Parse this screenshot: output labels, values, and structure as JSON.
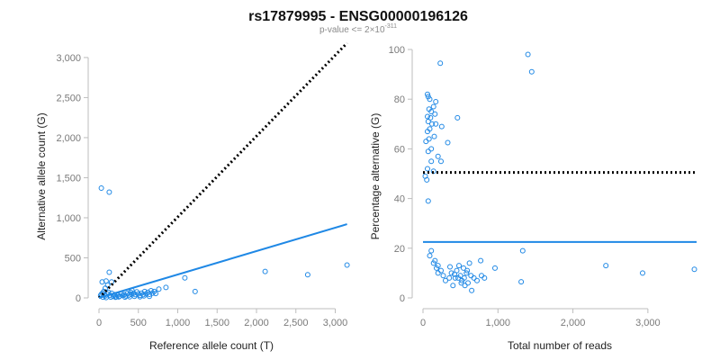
{
  "title": "rs17879995 - ENSG00000196126",
  "subtitle": {
    "prefix": "p-value <= 2",
    "times": "×",
    "base": "10",
    "exponent": "-311"
  },
  "colors": {
    "points": "#1f88e5",
    "fit": "#1f88e5",
    "reference": "#000000",
    "axis": "#bdbdbd",
    "tick_text": "#7a7a7a"
  },
  "chart_data": [
    {
      "type": "scatter",
      "xlabel": "Reference allele count (T)",
      "ylabel": "Alternative allele count (G)",
      "xlim": [
        0,
        3200
      ],
      "ylim": [
        0,
        3100
      ],
      "xticks": [
        0,
        500,
        1000,
        1500,
        2000,
        2500,
        3000
      ],
      "xtick_labels": [
        "0",
        "500",
        "1,000",
        "1,500",
        "2,000",
        "2,500",
        "3,000"
      ],
      "yticks": [
        0,
        500,
        1000,
        1500,
        2000,
        2500,
        3000
      ],
      "ytick_labels": [
        "0",
        "500",
        "1,000",
        "1,500",
        "2,000",
        "2,500",
        "3,000"
      ],
      "points": [
        [
          30,
          1370
        ],
        [
          130,
          1320
        ],
        [
          130,
          320
        ],
        [
          40,
          200
        ],
        [
          90,
          210
        ],
        [
          160,
          200
        ],
        [
          110,
          160
        ],
        [
          80,
          120
        ],
        [
          20,
          30
        ],
        [
          30,
          45
        ],
        [
          45,
          60
        ],
        [
          60,
          80
        ],
        [
          70,
          40
        ],
        [
          80,
          25
        ],
        [
          100,
          50
        ],
        [
          120,
          70
        ],
        [
          140,
          30
        ],
        [
          160,
          60
        ],
        [
          180,
          20
        ],
        [
          200,
          40
        ],
        [
          220,
          15
        ],
        [
          240,
          35
        ],
        [
          260,
          20
        ],
        [
          280,
          50
        ],
        [
          300,
          30
        ],
        [
          320,
          40
        ],
        [
          340,
          25
        ],
        [
          360,
          55
        ],
        [
          380,
          35
        ],
        [
          400,
          70
        ],
        [
          410,
          45
        ],
        [
          420,
          90
        ],
        [
          440,
          60
        ],
        [
          460,
          40
        ],
        [
          480,
          75
        ],
        [
          500,
          50
        ],
        [
          520,
          30
        ],
        [
          540,
          60
        ],
        [
          560,
          40
        ],
        [
          580,
          80
        ],
        [
          600,
          50
        ],
        [
          620,
          70
        ],
        [
          640,
          45
        ],
        [
          660,
          90
        ],
        [
          680,
          60
        ],
        [
          700,
          80
        ],
        [
          720,
          55
        ],
        [
          760,
          110
        ],
        [
          850,
          130
        ],
        [
          1090,
          250
        ],
        [
          1220,
          80
        ],
        [
          2110,
          330
        ],
        [
          2650,
          290
        ],
        [
          3150,
          410
        ],
        [
          50,
          10
        ],
        [
          90,
          5
        ],
        [
          150,
          10
        ],
        [
          210,
          8
        ],
        [
          250,
          12
        ],
        [
          330,
          10
        ],
        [
          390,
          15
        ],
        [
          450,
          20
        ],
        [
          520,
          15
        ],
        [
          570,
          25
        ],
        [
          640,
          20
        ]
      ],
      "fit_line": {
        "style": "solid",
        "x": [
          0,
          3150
        ],
        "y": [
          0,
          920
        ]
      },
      "reference_line": {
        "style": "dotted",
        "x": [
          0,
          3150
        ],
        "y": [
          0,
          3180
        ]
      }
    },
    {
      "type": "scatter",
      "xlabel": "Total number of reads",
      "ylabel": "Percentage alternative (G)",
      "xlim": [
        0,
        3650
      ],
      "ylim": [
        0,
        100
      ],
      "xticks": [
        0,
        1000,
        2000,
        3000
      ],
      "xtick_labels": [
        "0",
        "1,000",
        "2,000",
        "3,000"
      ],
      "yticks": [
        0,
        20,
        40,
        60,
        80,
        100
      ],
      "ytick_labels": [
        "0",
        "20",
        "40",
        "60",
        "80",
        "100"
      ],
      "points": [
        [
          1400,
          98
        ],
        [
          1450,
          91
        ],
        [
          230,
          94.5
        ],
        [
          60,
          82
        ],
        [
          70,
          81
        ],
        [
          90,
          80
        ],
        [
          170,
          79
        ],
        [
          140,
          77
        ],
        [
          80,
          76
        ],
        [
          110,
          75
        ],
        [
          160,
          74
        ],
        [
          60,
          73
        ],
        [
          100,
          72.5
        ],
        [
          460,
          72.5
        ],
        [
          70,
          71
        ],
        [
          120,
          70
        ],
        [
          170,
          70
        ],
        [
          250,
          69
        ],
        [
          90,
          68
        ],
        [
          60,
          67
        ],
        [
          150,
          65
        ],
        [
          80,
          64
        ],
        [
          40,
          63
        ],
        [
          330,
          62.5
        ],
        [
          110,
          60
        ],
        [
          70,
          59
        ],
        [
          200,
          57
        ],
        [
          240,
          55
        ],
        [
          110,
          55
        ],
        [
          60,
          52
        ],
        [
          140,
          51
        ],
        [
          30,
          49
        ],
        [
          50,
          47.5
        ],
        [
          70,
          39
        ],
        [
          110,
          19
        ],
        [
          90,
          17
        ],
        [
          160,
          15
        ],
        [
          140,
          14
        ],
        [
          200,
          13
        ],
        [
          180,
          12
        ],
        [
          240,
          11
        ],
        [
          200,
          10
        ],
        [
          270,
          9
        ],
        [
          360,
          12.5
        ],
        [
          380,
          10
        ],
        [
          420,
          9.5
        ],
        [
          450,
          11
        ],
        [
          470,
          8
        ],
        [
          500,
          9
        ],
        [
          520,
          7
        ],
        [
          550,
          8
        ],
        [
          580,
          10
        ],
        [
          600,
          6
        ],
        [
          640,
          9
        ],
        [
          680,
          8
        ],
        [
          720,
          7
        ],
        [
          780,
          9
        ],
        [
          820,
          8
        ],
        [
          480,
          13
        ],
        [
          540,
          12
        ],
        [
          620,
          14
        ],
        [
          770,
          15
        ],
        [
          960,
          12
        ],
        [
          1330,
          19
        ],
        [
          1310,
          6.5
        ],
        [
          650,
          3
        ],
        [
          400,
          5
        ],
        [
          300,
          7
        ],
        [
          2440,
          13
        ],
        [
          2930,
          10
        ],
        [
          3620,
          11.5
        ],
        [
          430,
          8
        ],
        [
          510,
          6
        ],
        [
          560,
          5
        ],
        [
          350,
          8
        ],
        [
          590,
          11
        ]
      ],
      "fit_line": {
        "style": "solid",
        "x": [
          0,
          3650
        ],
        "y": [
          22.5,
          22.5
        ]
      },
      "reference_line": {
        "style": "dotted",
        "x": [
          0,
          3650
        ],
        "y": [
          50.5,
          50.5
        ]
      }
    }
  ]
}
